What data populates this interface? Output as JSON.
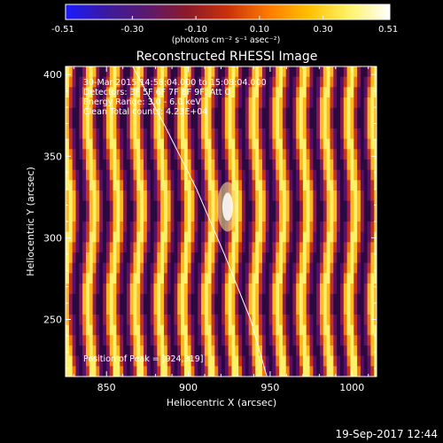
{
  "colorbar": {
    "min_label": "-0.51",
    "tick_labels": [
      "-0.30",
      "-0.10",
      "0.10",
      "0.30"
    ],
    "max_label": "0.51",
    "unit_text": "(photons cm⁻² s⁻¹ asec⁻²)",
    "colors": [
      "#1a1aff",
      "#3b1aa0",
      "#5a1a6e",
      "#8c1a2a",
      "#c8320a",
      "#ff7a00",
      "#ffc000",
      "#fff36a",
      "#ffffff"
    ]
  },
  "chart_data": {
    "type": "heatmap",
    "title": "Reconstructed RHESSI Image",
    "xlabel": "Heliocentric X (arcsec)",
    "ylabel": "Heliocentric Y (arcsec)",
    "xlim": [
      825,
      1015
    ],
    "ylim": [
      215,
      405
    ],
    "x_ticks": [
      850,
      900,
      950,
      1000
    ],
    "y_ticks": [
      250,
      300,
      350,
      400
    ],
    "info_lines": [
      "30-Mar-2015 14:58:04.000 to 15:08:04.000",
      "Detectors: 3F 5F 6F 7F 8F 9F, Att 0",
      "Energy Range: 3.0 - 6.0 keV",
      "Clean    Total counts: 4.23E+04"
    ],
    "peak_label": "Position of Peak = [924,319]",
    "peak": {
      "x": 924,
      "y": 319
    },
    "limb_curve": [
      [
        866,
        405
      ],
      [
        885,
        370
      ],
      [
        905,
        330
      ],
      [
        922,
        290
      ],
      [
        938,
        250
      ],
      [
        948,
        215
      ]
    ],
    "stripe_period_arcsec": 14.5,
    "value_range": [
      -0.51,
      0.51
    ]
  },
  "footer_date": "19-Sep-2017 12:44"
}
